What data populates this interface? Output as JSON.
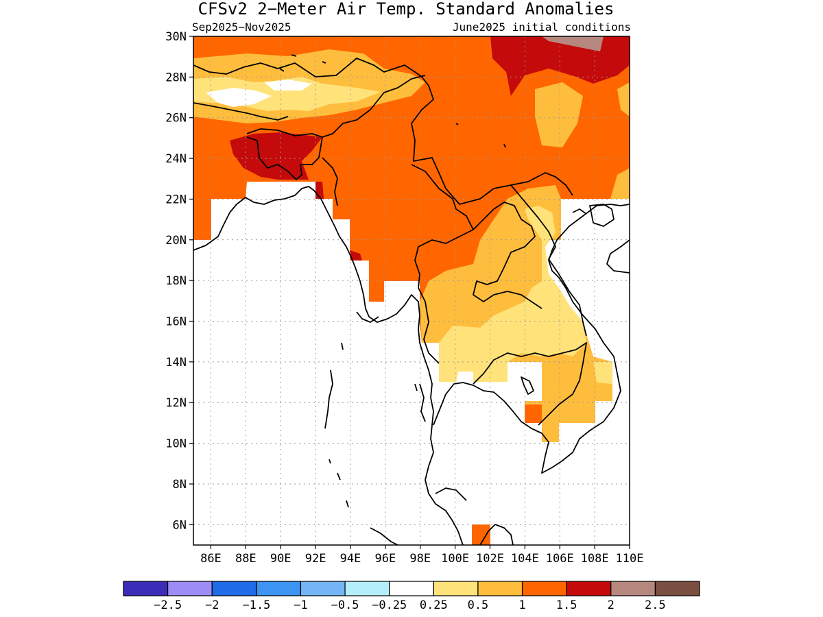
{
  "title": "CFSv2 2−Meter Air Temp. Standard Anomalies",
  "subtitle_left": "Sep2025−Nov2025",
  "subtitle_right": "June2025 initial conditions",
  "lat_ticks": [
    "30N",
    "28N",
    "26N",
    "24N",
    "22N",
    "20N",
    "18N",
    "16N",
    "14N",
    "12N",
    "10N",
    "8N",
    "6N"
  ],
  "lon_ticks": [
    "86E",
    "88E",
    "90E",
    "92E",
    "94E",
    "96E",
    "98E",
    "100E",
    "102E",
    "104E",
    "106E",
    "108E",
    "110E"
  ],
  "colorbar": {
    "colors": [
      "#3b2db8",
      "#9d8cf5",
      "#1f6be8",
      "#3d94f2",
      "#74b5f5",
      "#b4eefa",
      "#ffffff",
      "#ffe27a",
      "#ffbd3d",
      "#ff6600",
      "#c40a0a",
      "#b5877e",
      "#7a4e40"
    ],
    "labels": [
      "−2.5",
      "−2",
      "−1.5",
      "−1",
      "−0.5",
      "−0.25",
      "0.25",
      "0.5",
      "1",
      "1.5",
      "2",
      "2.5"
    ]
  },
  "map_colors": {
    "c025": "#ffe27a",
    "c05": "#ffbd3d",
    "c1": "#ff6600",
    "c15": "#c40a0a",
    "c2": "#b5877e"
  }
}
